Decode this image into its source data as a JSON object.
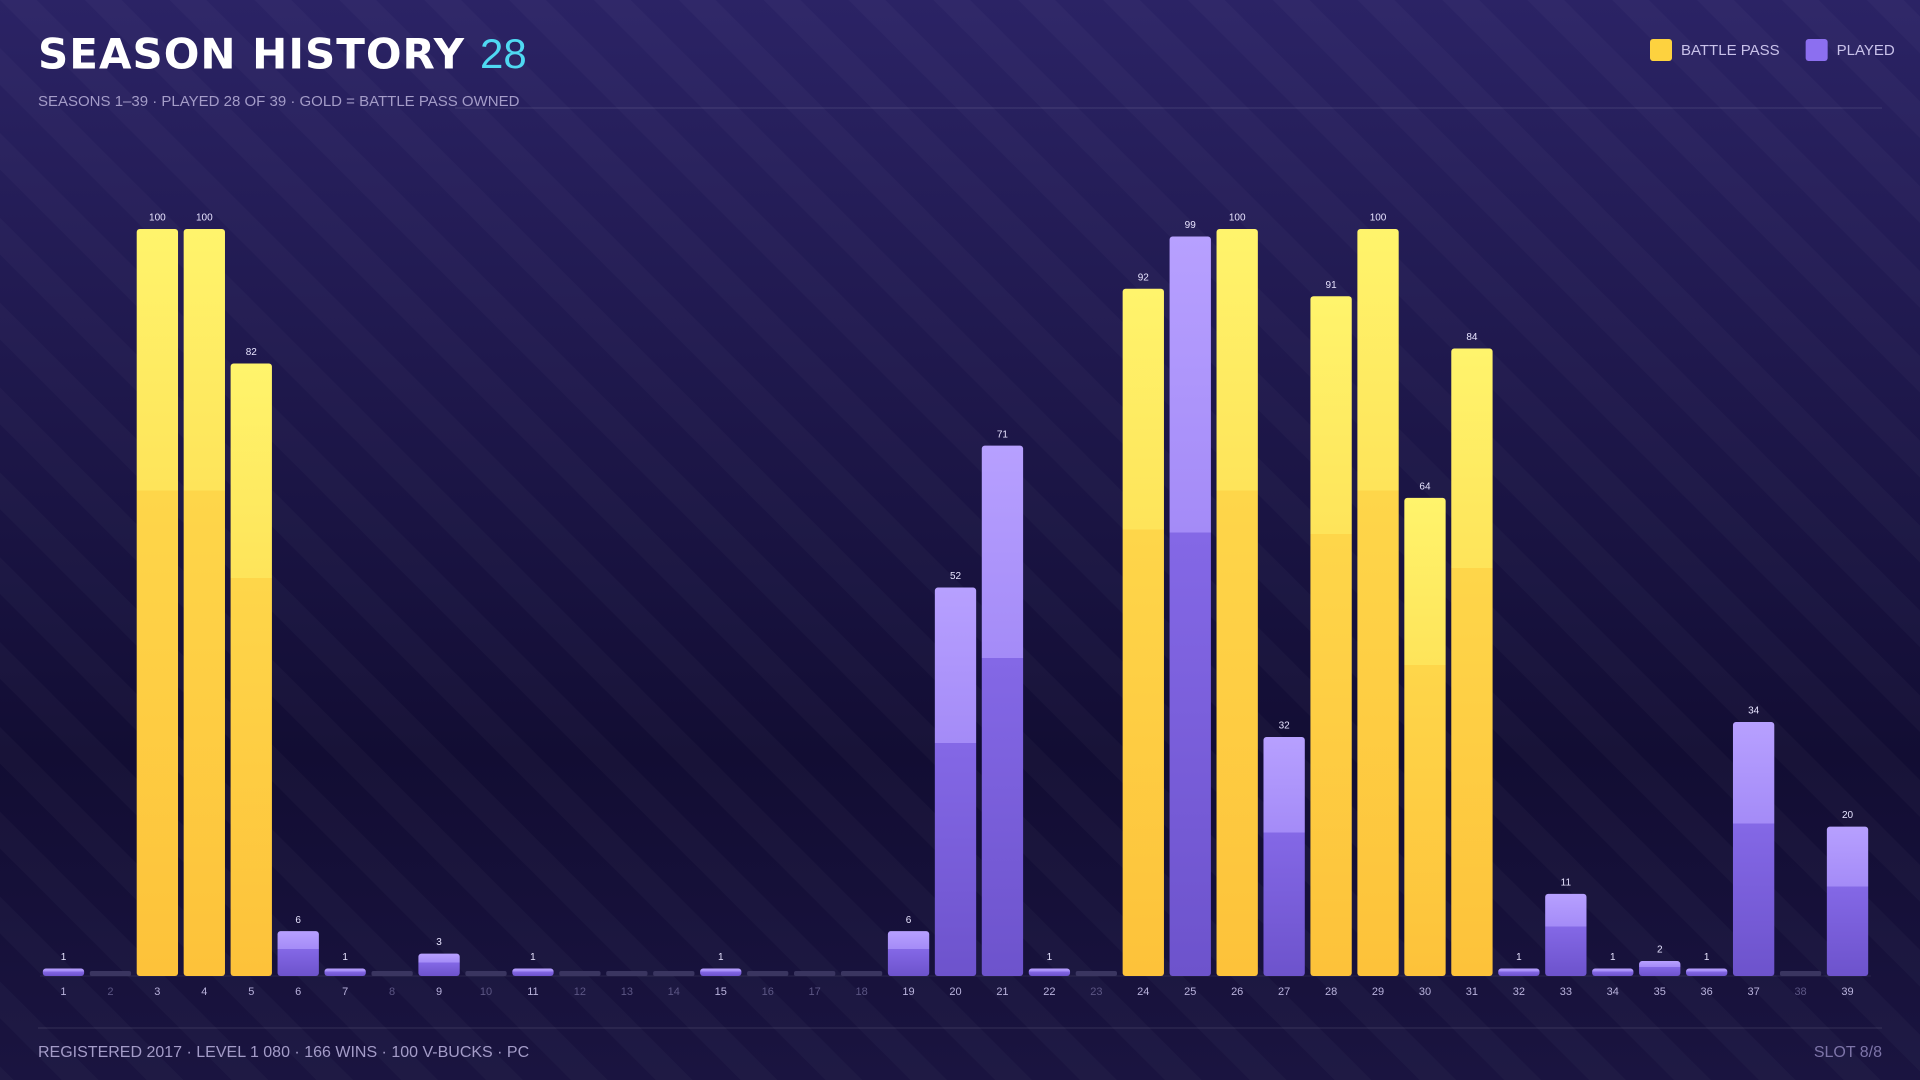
{
  "chart_data": {
    "type": "bar",
    "title": "SEASON HISTORY",
    "count": "28",
    "subtitle": "SEASONS 1–39 · PLAYED 28 OF 39 · GOLD = BATTLE PASS OWNED",
    "footer": "REGISTERED 2017 · LEVEL 1 080 · 166 WINS · 100 V-BUCKS · PC",
    "slot": "SLOT 8/8",
    "categories": [
      "1",
      "2",
      "3",
      "4",
      "5",
      "6",
      "7",
      "8",
      "9",
      "10",
      "11",
      "12",
      "13",
      "14",
      "15",
      "16",
      "17",
      "18",
      "19",
      "20",
      "21",
      "22",
      "23",
      "24",
      "25",
      "26",
      "27",
      "28",
      "29",
      "30",
      "31",
      "32",
      "33",
      "34",
      "35",
      "36",
      "37",
      "38",
      "39"
    ],
    "series": [
      {
        "name": "BATTLE PASS",
        "color": "#fdd23f",
        "values": [
          null,
          null,
          100,
          100,
          82,
          null,
          null,
          null,
          null,
          null,
          null,
          null,
          null,
          null,
          null,
          null,
          null,
          null,
          null,
          null,
          null,
          null,
          null,
          92,
          null,
          100,
          null,
          91,
          100,
          64,
          84,
          null,
          null,
          null,
          null,
          null,
          null,
          null,
          null
        ]
      },
      {
        "name": "PLAYED",
        "color": "#8c6ff0",
        "values": [
          1,
          null,
          null,
          null,
          null,
          6,
          1,
          null,
          3,
          null,
          1,
          null,
          null,
          null,
          1,
          null,
          null,
          null,
          6,
          52,
          71,
          1,
          null,
          null,
          99,
          null,
          32,
          null,
          null,
          null,
          null,
          1,
          11,
          1,
          2,
          1,
          34,
          null,
          20
        ]
      }
    ],
    "ylim": [
      0,
      100
    ],
    "legend": "top-right"
  }
}
